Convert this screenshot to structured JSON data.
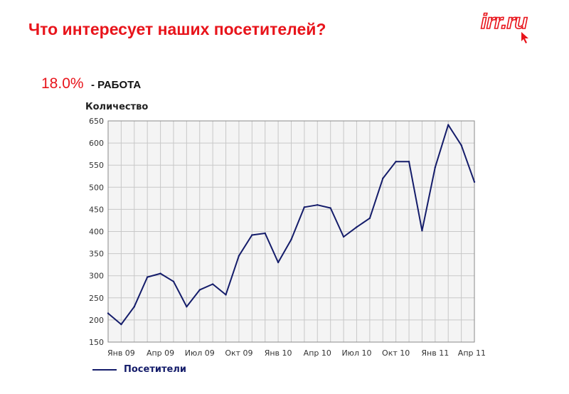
{
  "header": {
    "title": "Что интересует наших посетителей?",
    "logo_text": "irr.ru"
  },
  "stat": {
    "value": "18.0%",
    "label": "- РАБОТА"
  },
  "colors": {
    "accent": "#e8141b",
    "line": "#141c6a",
    "plot_bg": "#f4f4f4",
    "grid": "#c8c8c8"
  },
  "chart_data": {
    "type": "line",
    "ylabel": "Количество",
    "ylim": [
      150,
      650
    ],
    "yticks": [
      150,
      200,
      250,
      300,
      350,
      400,
      450,
      500,
      550,
      600,
      650
    ],
    "x_start": "2008-12",
    "x_end": "2011-04",
    "xtick_labels": [
      "Янв 09",
      "Апр 09",
      "Июл 09",
      "Окт 09",
      "Янв 10",
      "Апр 10",
      "Июл 10",
      "Окт 10",
      "Янв 11",
      "Апр 11"
    ],
    "grid": true,
    "series": [
      {
        "name": "Посетители",
        "values": [
          215,
          190,
          230,
          297,
          305,
          287,
          230,
          268,
          281,
          257,
          345,
          392,
          396,
          330,
          382,
          455,
          460,
          453,
          388,
          410,
          430,
          520,
          558,
          558,
          402,
          545,
          641,
          595,
          512
        ]
      }
    ]
  }
}
